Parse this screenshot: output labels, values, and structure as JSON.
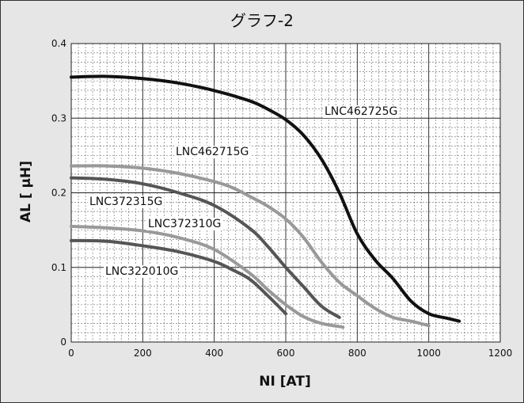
{
  "chart_data": {
    "type": "line",
    "title": "グラフ-2",
    "xlabel": "NI [AT]",
    "ylabel": "AL [ μH]",
    "xlim": [
      0,
      1200
    ],
    "ylim": [
      0,
      0.4
    ],
    "x_ticks": [
      0,
      200,
      400,
      600,
      800,
      1000,
      1200
    ],
    "y_ticks": [
      0,
      0.1,
      0.2,
      0.3,
      0.4
    ],
    "x_tick_labels": [
      "0",
      "200",
      "400",
      "600",
      "800",
      "1000",
      "1200"
    ],
    "y_tick_labels": [
      "0",
      "0.1",
      "0.2",
      "0.3",
      "0.4"
    ],
    "grid": true,
    "legend": "labels placed near curves",
    "series": [
      {
        "name": "LNC462725G",
        "color": "#111111",
        "points": [
          [
            0,
            0.355
          ],
          [
            100,
            0.356
          ],
          [
            200,
            0.353
          ],
          [
            300,
            0.347
          ],
          [
            400,
            0.337
          ],
          [
            500,
            0.323
          ],
          [
            550,
            0.312
          ],
          [
            600,
            0.298
          ],
          [
            650,
            0.277
          ],
          [
            700,
            0.245
          ],
          [
            750,
            0.2
          ],
          [
            800,
            0.145
          ],
          [
            850,
            0.11
          ],
          [
            900,
            0.085
          ],
          [
            950,
            0.055
          ],
          [
            1000,
            0.038
          ],
          [
            1050,
            0.032
          ],
          [
            1085,
            0.028
          ]
        ]
      },
      {
        "name": "LNC462715G",
        "color": "#999999",
        "points": [
          [
            0,
            0.236
          ],
          [
            100,
            0.236
          ],
          [
            200,
            0.233
          ],
          [
            300,
            0.226
          ],
          [
            400,
            0.215
          ],
          [
            450,
            0.207
          ],
          [
            500,
            0.195
          ],
          [
            550,
            0.182
          ],
          [
            600,
            0.165
          ],
          [
            650,
            0.14
          ],
          [
            700,
            0.107
          ],
          [
            750,
            0.08
          ],
          [
            800,
            0.062
          ],
          [
            850,
            0.045
          ],
          [
            900,
            0.033
          ],
          [
            950,
            0.028
          ],
          [
            1000,
            0.022
          ]
        ]
      },
      {
        "name": "LNC372315G",
        "color": "#555555",
        "points": [
          [
            0,
            0.22
          ],
          [
            100,
            0.218
          ],
          [
            200,
            0.212
          ],
          [
            300,
            0.2
          ],
          [
            400,
            0.183
          ],
          [
            500,
            0.152
          ],
          [
            550,
            0.128
          ],
          [
            600,
            0.1
          ],
          [
            650,
            0.074
          ],
          [
            700,
            0.048
          ],
          [
            750,
            0.033
          ]
        ]
      },
      {
        "name": "LNC372310G",
        "color": "#999999",
        "points": [
          [
            0,
            0.155
          ],
          [
            100,
            0.153
          ],
          [
            200,
            0.149
          ],
          [
            300,
            0.14
          ],
          [
            400,
            0.124
          ],
          [
            500,
            0.092
          ],
          [
            550,
            0.07
          ],
          [
            600,
            0.05
          ],
          [
            650,
            0.034
          ],
          [
            700,
            0.025
          ],
          [
            760,
            0.02
          ]
        ]
      },
      {
        "name": "LNC322010G",
        "color": "#555555",
        "points": [
          [
            0,
            0.136
          ],
          [
            100,
            0.135
          ],
          [
            200,
            0.129
          ],
          [
            300,
            0.121
          ],
          [
            400,
            0.108
          ],
          [
            450,
            0.097
          ],
          [
            500,
            0.084
          ],
          [
            550,
            0.062
          ],
          [
            600,
            0.038
          ]
        ]
      }
    ]
  }
}
